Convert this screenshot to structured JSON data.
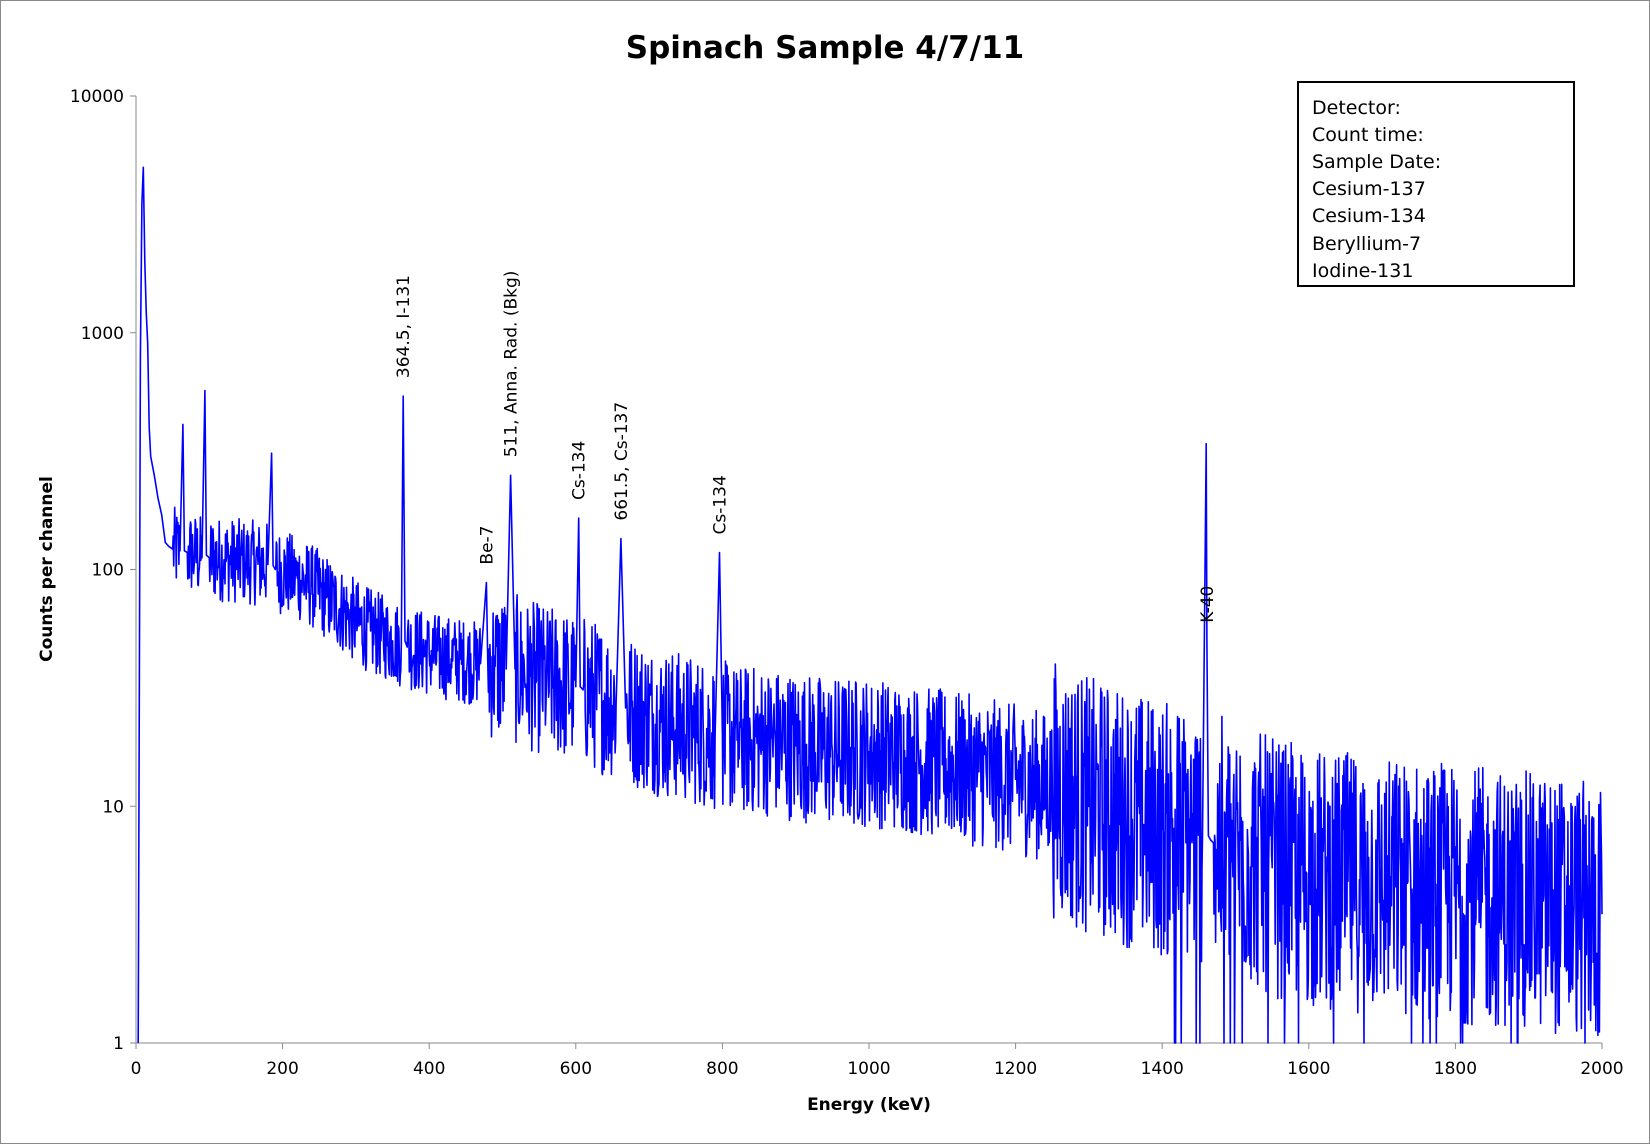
{
  "chart_data": {
    "type": "line",
    "title": "Spinach Sample 4/7/11",
    "xlabel": "Energy (keV)",
    "ylabel": "Counts per channel",
    "xlim": [
      0,
      2000
    ],
    "ylim": [
      1,
      10000
    ],
    "yscale": "log",
    "grid": false,
    "x_ticks": [
      "0",
      "200",
      "400",
      "600",
      "800",
      "1000",
      "1200",
      "1400",
      "1600",
      "1800",
      "2000"
    ],
    "y_ticks": [
      "1",
      "10",
      "100",
      "1000",
      "10000"
    ],
    "series": [
      {
        "color": "#0000ff",
        "x": [
          3,
          6,
          8,
          10,
          12,
          14,
          16,
          18,
          20,
          25,
          30,
          35,
          40,
          45,
          50,
          60,
          64,
          66,
          70,
          80,
          90,
          94,
          96,
          100,
          120,
          150,
          180,
          185,
          187,
          190,
          220,
          240,
          260,
          290,
          300,
          320,
          350,
          362,
          364.5,
          367,
          370,
          400,
          430,
          470,
          478,
          480,
          490,
          505,
          511,
          517,
          530,
          560,
          590,
          600,
          604,
          606,
          610,
          640,
          655,
          661.5,
          668,
          680,
          710,
          760,
          790,
          796,
          800,
          820,
          850,
          900,
          950,
          1000,
          1050,
          1100,
          1150,
          1200,
          1250,
          1300,
          1350,
          1400,
          1440,
          1455,
          1460,
          1461,
          1463,
          1466,
          1470,
          1500,
          1550,
          1600,
          1650,
          1700,
          1750,
          1800,
          1850,
          1900,
          1950,
          2000
        ],
        "y": [
          1,
          800,
          3500,
          5000,
          2000,
          1200,
          900,
          400,
          300,
          250,
          200,
          170,
          130,
          125,
          122,
          120,
          410,
          120,
          118,
          115,
          112,
          570,
          115,
          112,
          110,
          108,
          105,
          310,
          104,
          100,
          92,
          85,
          76,
          64,
          60,
          55,
          50,
          48,
          540,
          50,
          47,
          44,
          42,
          40,
          88,
          40,
          39,
          38,
          250,
          38,
          36,
          34,
          32,
          32,
          165,
          32,
          31,
          28,
          27,
          135,
          26,
          25,
          23,
          21,
          20,
          118,
          20,
          19,
          19,
          18,
          17,
          17,
          16,
          15,
          14,
          13,
          12,
          10,
          9,
          8,
          7.5,
          7.5,
          340,
          50,
          7.5,
          7.2,
          7,
          6.5,
          5.5,
          5,
          4.8,
          4.6,
          4.5,
          4.3,
          4.1,
          4,
          3.8,
          3.5
        ]
      }
    ],
    "annotations": [
      {
        "text": "364.5, I-131",
        "x": 364.5
      },
      {
        "text": "Be-7",
        "x": 478
      },
      {
        "text": "511, Anna. Rad. (Bkg)",
        "x": 511
      },
      {
        "text": "Cs-134",
        "x": 604
      },
      {
        "text": "661.5, Cs-137",
        "x": 661.5
      },
      {
        "text": "Cs-134",
        "x": 796
      },
      {
        "text": "K-40",
        "x": 1461
      }
    ],
    "legend": {
      "placement": "top-right",
      "lines": [
        "Detector:",
        "Count time:",
        "Sample Date:",
        "Cesium-137",
        "Cesium-134",
        "Beryllium-7",
        "Iodine-131"
      ]
    }
  }
}
